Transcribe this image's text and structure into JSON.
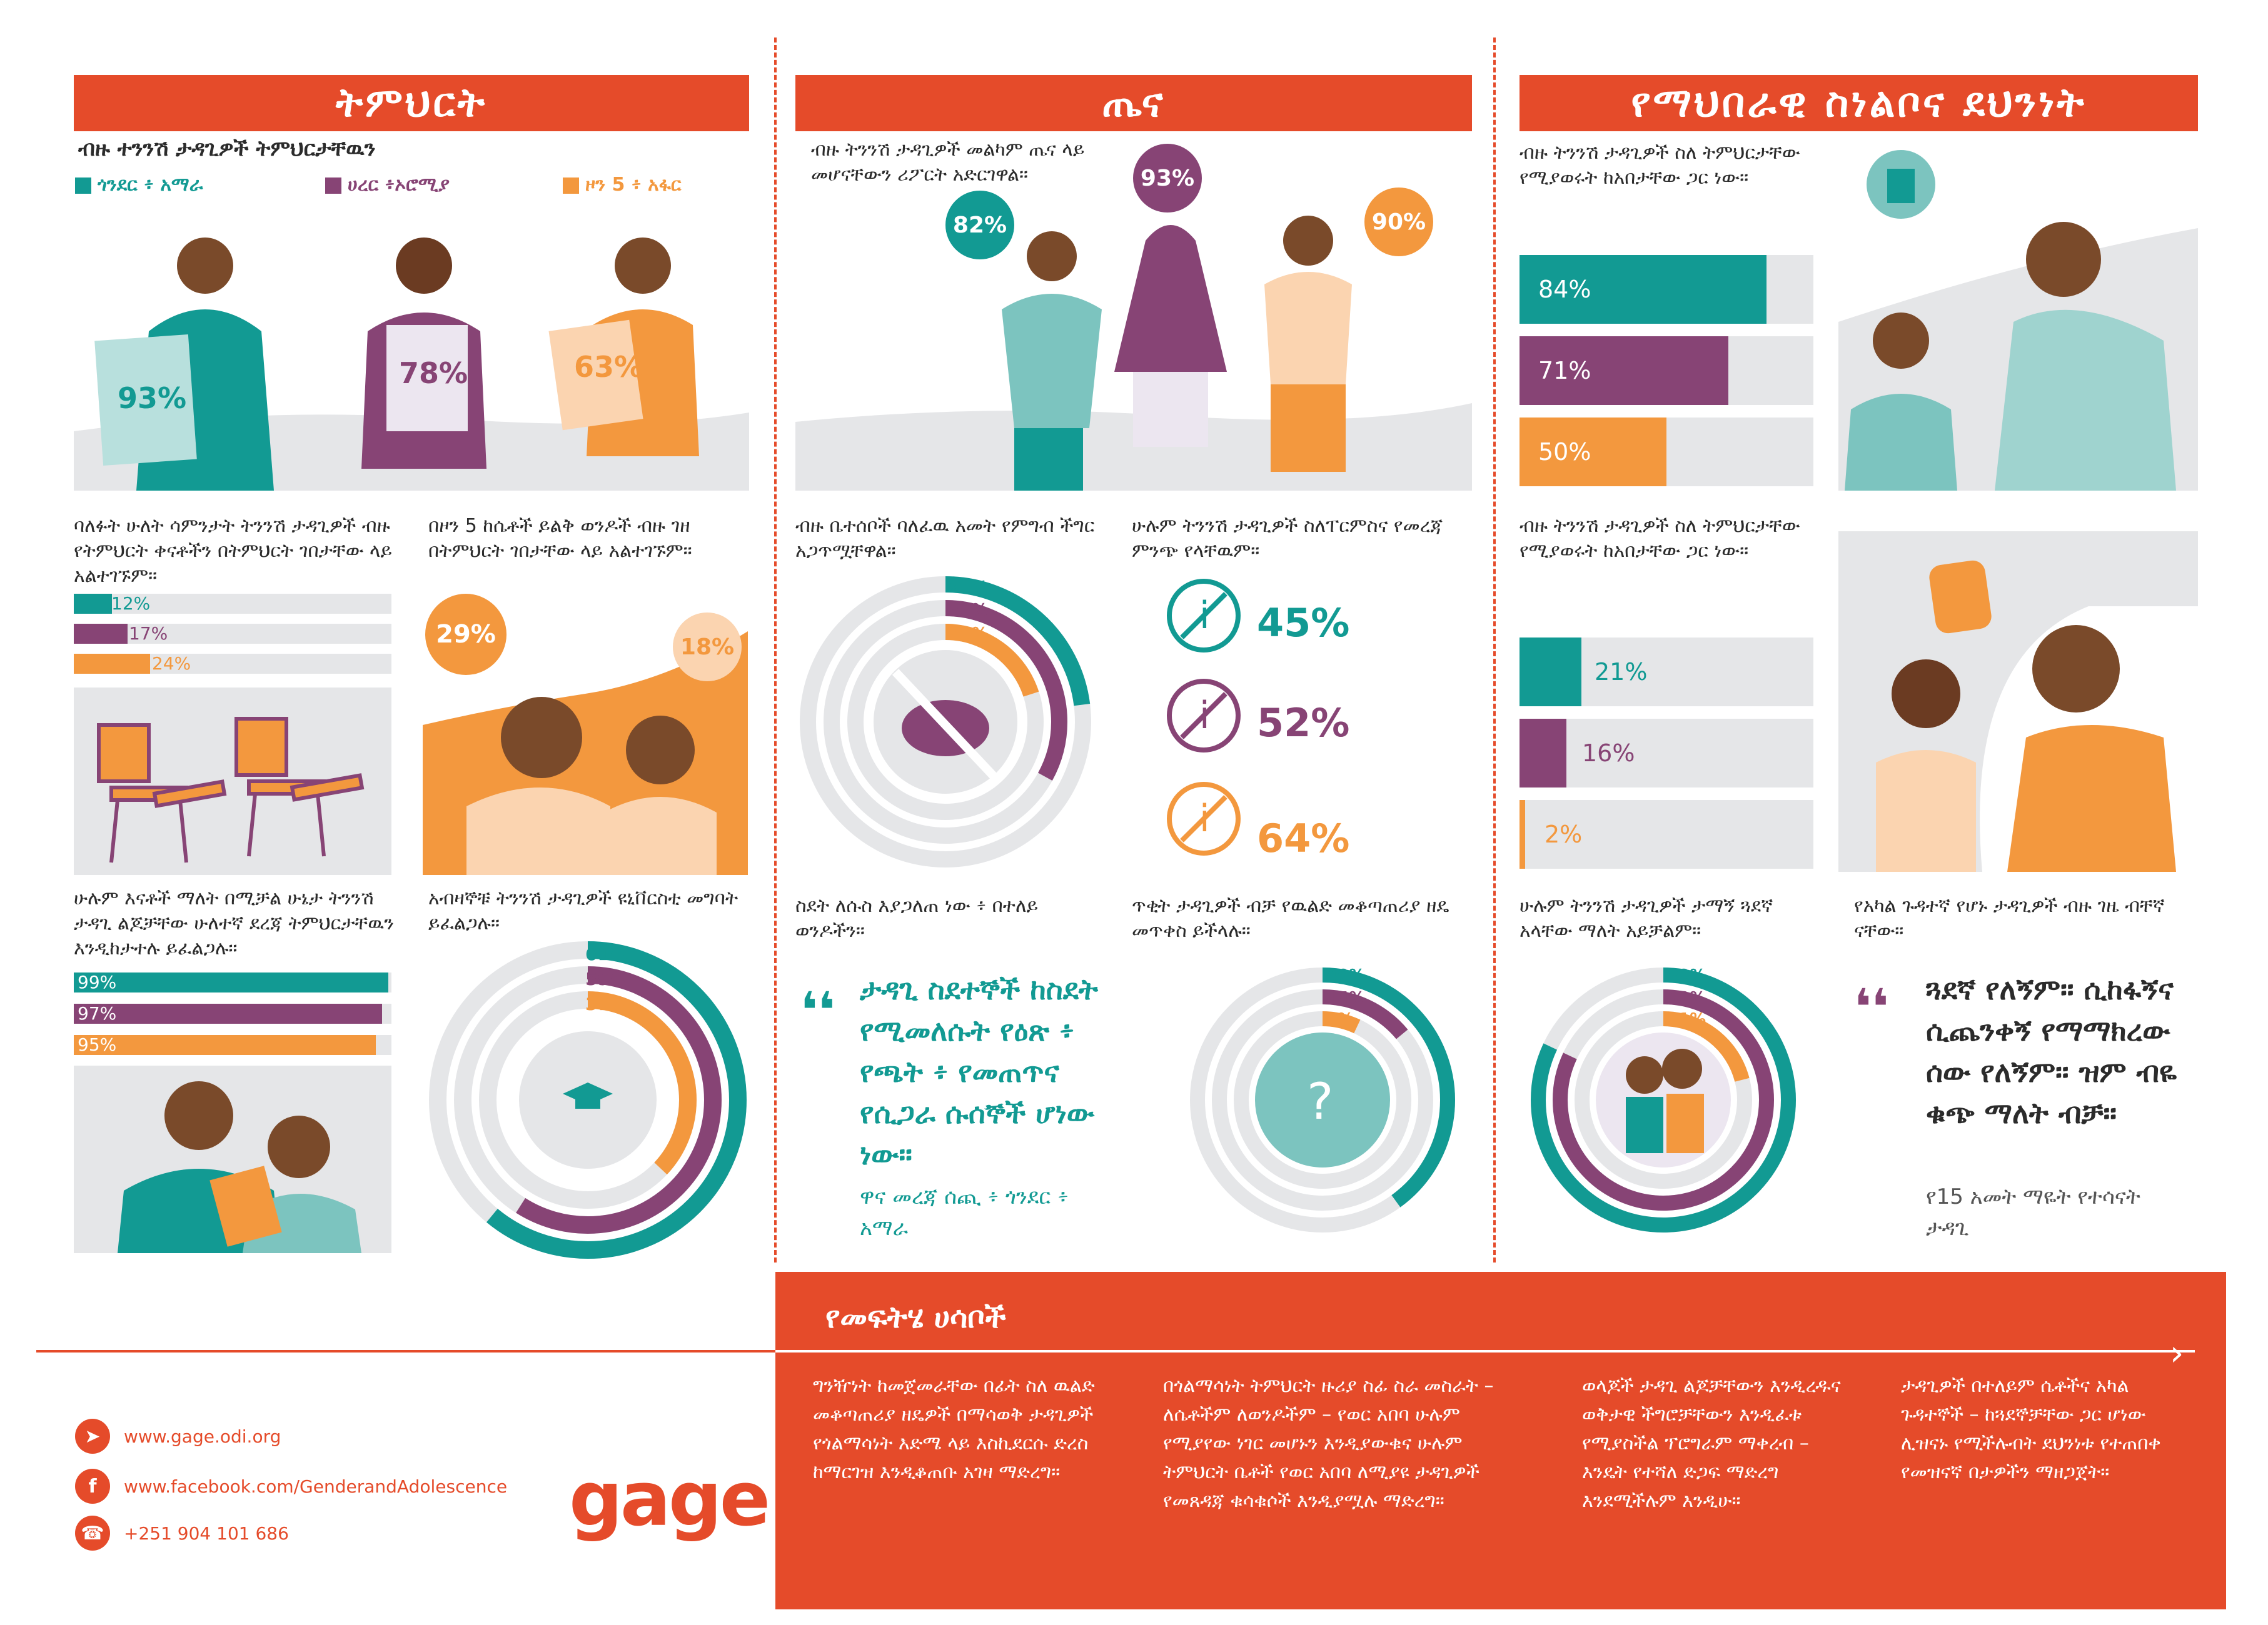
{
  "colors": {
    "orange_red": "#e54b2a",
    "teal": "#129a93",
    "purple": "#874475",
    "light_orange": "#f3983e",
    "grey": "#e5e6e8"
  },
  "education": {
    "title": "ትምህርት",
    "subtitle": "ብዙ ተንንሽ ታዳጊዎች ትምህርታቸዉን",
    "legend": [
      "ጎንደር ፥ አማራ",
      "ሀረር ፥ኦሮሚያ",
      "ዞን 5 ፥ አፋር"
    ],
    "figures_pct": [
      "93%",
      "78%",
      "63%"
    ],
    "text_absent": "ባለፉት ሁለት ሳምንታት ትንንሽ ታዳጊዎች ብዙ የትምህርት ቀናቶችን በትምህርት ገበታቸው ላይ አልተገኙም።",
    "absent_bars": [
      {
        "label": "12%",
        "value": 12
      },
      {
        "label": "17%",
        "value": 17
      },
      {
        "label": "24%",
        "value": 24
      }
    ],
    "text_zone5": "በዞን 5 ከሴቶች ይልቅ ወንዶች ብዙ ገዘ በትምህርት ገበታቸው ላይ አልተገኙም።",
    "zone5_bubbles": [
      "29%",
      "18%"
    ],
    "text_parents": "ሁሉም እናቶች ማለት በሚቻል ሁኔታ ትንንሽ ታዳጊ ልጆቻቸው ሁለተኛ ደረጃ ትምህርታቸዉን እንዲከታተሉ ይፈልጋሉ።",
    "parent_bars": [
      {
        "label": "99%",
        "value": 99
      },
      {
        "label": "97%",
        "value": 97
      },
      {
        "label": "95%",
        "value": 95
      }
    ],
    "text_university": "አብዛኞቹ ትንንሽ ታዳጊዎች ዩኒቨርስቲ መግባት ይፈልጋሉ።",
    "university_rings": [
      {
        "label": "61%",
        "value": 61
      },
      {
        "label": "59%",
        "value": 59
      },
      {
        "label": "37%",
        "value": 37
      }
    ]
  },
  "health": {
    "title": "ጤና",
    "subtitle": "ብዙ ትንንሽ ታዳጊዎች መልካም ጤና ላይ መሆናቸውን ሪፖርት አድርገዋል።",
    "bubbles": [
      "82%",
      "93%",
      "90%"
    ],
    "text_food": "ብዙ ቤተሰቦች ባለፈዉ አመት የምግብ ችግር አጋጥሟቸዋል።",
    "food_rings": [
      {
        "label": "23%",
        "value": 23
      },
      {
        "label": "33%",
        "value": 33
      },
      {
        "label": "20%",
        "value": 20
      }
    ],
    "text_no_info": "ሁሉም ትንንሽ ታዳጊዎች ስለፐርምስና የመረጃ ምንጭ የላቸዉም።",
    "no_info": [
      {
        "label": "45%",
        "value": 45
      },
      {
        "label": "52%",
        "value": 52
      },
      {
        "label": "64%",
        "value": 64
      }
    ],
    "text_risk": "ስደት ለሱስ እያጋለጠ ነው ፥ በተለይ ወንዶችን።",
    "quote": "ታዳጊ ስደተኞች ከስደት የሚመለሱት የዕጽ ፥ የጫት ፥ የመጠጥና የሲጋራ ሱሰኞች ሆነው ነው።",
    "quote_source": "ዋና መረጃ ሰጪ ፥ ጎንደር ፥ አማራ",
    "text_contraception": "ጥቂት ታዳጊዎች ብቻ የዉልድ መቆጣጠሪያ ዘዴ መጥቀስ ይችላሉ።",
    "contraception_rings": [
      {
        "label": "40%",
        "value": 40
      },
      {
        "label": "14%",
        "value": 14
      },
      {
        "label": "7%",
        "value": 7
      }
    ]
  },
  "social": {
    "title": "የማህበራዊ ስነልቦና ደህንነት",
    "text_talk": "ብዙ ትንንሽ ታዳጊዎች ስለ ትምህርታቸው የሚያወሩት ከአበታቸው ጋር ነው።",
    "talk_bars": [
      {
        "label": "84%",
        "value": 84
      },
      {
        "label": "71%",
        "value": 71
      },
      {
        "label": "50%",
        "value": 50
      }
    ],
    "text_talk2": "ብዙ ትንንሽ ታዳጊዎች ስለ ትምህርታቸው የሚያወሩት ከአበታቸው ጋር ነው።",
    "talk2_bars": [
      {
        "label": "21%",
        "value": 21
      },
      {
        "label": "16%",
        "value": 16
      },
      {
        "label": "2%",
        "value": 2
      }
    ],
    "text_friends": "ሁሉም ትንንሽ ታዳጊዎች ታማኝ ጓደኛ አላቸው ማለት አይቻልም።",
    "friend_rings": [
      {
        "label": "82%",
        "value": 82
      },
      {
        "label": "82%",
        "value": 82
      },
      {
        "label": "21%",
        "value": 21
      }
    ],
    "text_disabled": "የአካል ጉዳተኛ የሆኑ ታዳጊዎች ብዙ ገዜ ብቸኛ ናቸው።",
    "quote": "ጓደኛ የለኝም። ሲከፋኝና ሲጨንቀኝ የማማክረው ሰው የለኝም። ዝም ብዬ ቁጭ ማለት ብቻ።",
    "quote_source": "የ15 አመት ማዬት የተሳናት ታዳጊ"
  },
  "solutions": {
    "title": "የመፍትሄ ሀሳቦች",
    "items": [
      "ግንዥነት ከመጀመራቸው በፊት ስለ ዉልድ መቆጣጠሪያ ዘዴዎች በማሳወቅ ታዳጊዎች የጎልማሳነት እድሜ ላይ እስኪደርሱ ድረስ ከማርገዝ እንዲቆጠቡ አገዛ ማድረግ።",
      "በጎልማሳነት ትምህርት ዙሪያ ስፊ ስራ መስራት – ለሴቶችም ለወንዶችም – የወር አበባ ሁሉም የሚያየው ነገር መሆኑን እንዲያውቁና ሁሉም ትምህርት ቤቶች የወር አበባ ለሚያዩ ታዳጊዎች የመጸዳጃ ቁሳቁሶች እንዲያሟሉ ማድረግ።",
      "ወላጆች ታዳጊ ልጆቻቸውን እንዲረዱና ወቅታዊ ችግሮቻቸውን እንዲፈቱ የሚያስችል ፕሮግራም ማቀረብ – እንዴት የተሻለ ድጋፍ ማድረግ እንደሚችሉም እንዲሁ።",
      "ታዳጊዎች በተለይም ሴቶችና አካል ጉዳተኞች – ከጓደኞቻቸው ጋር ሆነው ሊዝናኑ የሚችሉብት ደህንነቱ የተጠበቀ የመዝናኛ በታዎችን ማዘጋጀት።"
    ]
  },
  "contacts": [
    {
      "icon": "send-icon",
      "text": "www.gage.odi.org"
    },
    {
      "icon": "facebook-icon",
      "text": "www.facebook.com/GenderandAdolescence"
    },
    {
      "icon": "phone-icon",
      "text": "+251 904 101 686"
    }
  ],
  "logo_text": "gage"
}
